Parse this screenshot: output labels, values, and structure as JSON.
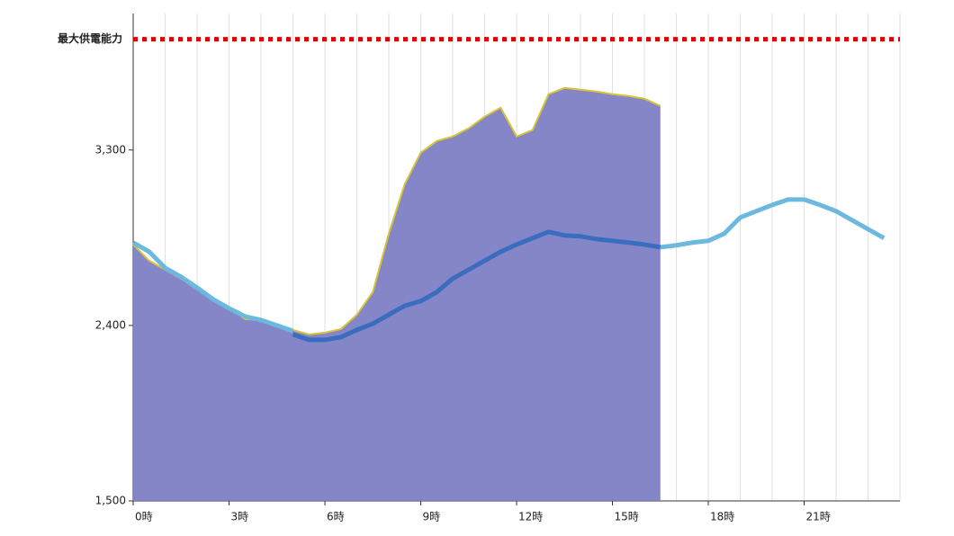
{
  "chart_data": {
    "type": "area-line",
    "x": [
      0,
      0.5,
      1,
      1.5,
      2,
      2.5,
      3,
      3.5,
      4,
      4.5,
      5,
      5.5,
      6,
      6.5,
      7,
      7.5,
      8,
      8.5,
      9,
      9.5,
      10,
      10.5,
      11,
      11.5,
      12,
      12.5,
      13,
      13.5,
      14,
      14.5,
      15,
      15.5,
      16,
      16.5,
      17,
      17.5,
      18,
      18.5,
      19,
      19.5,
      20,
      20.5,
      21,
      21.5,
      22,
      22.5,
      23,
      23.5
    ],
    "series": [
      {
        "kind": "area",
        "color": "#7d80c4",
        "line_color": "#d8c23a",
        "values": [
          2815,
          2732,
          2686,
          2640,
          2585,
          2538,
          2492,
          2432,
          2428,
          2400,
          2377,
          2354,
          2363,
          2381,
          2455,
          2571,
          2871,
          3125,
          3286,
          3346,
          3369,
          3411,
          3471,
          3517,
          3369,
          3402,
          3586,
          3618,
          3609,
          3600,
          3586,
          3577,
          3563,
          3526,
          null,
          null,
          null,
          null,
          null,
          null,
          null,
          null,
          null,
          null,
          null,
          null,
          null,
          null
        ]
      },
      {
        "kind": "line",
        "color": "#6cb8de",
        "values": [
          2825,
          2778,
          2695,
          2649,
          2594,
          2534,
          2488,
          2446,
          2428,
          2400,
          2372,
          null,
          null,
          null,
          null,
          null,
          null,
          null,
          null,
          null,
          null,
          null,
          null,
          null,
          null,
          null,
          null,
          null,
          null,
          null,
          null,
          null,
          null,
          2801,
          2811,
          2825,
          2834,
          2871,
          2954,
          2986,
          3018,
          3046,
          3046,
          3018,
          2986,
          2940,
          2894,
          2848
        ]
      },
      {
        "kind": "line",
        "color": "#3a6cc0",
        "values": [
          null,
          null,
          null,
          null,
          null,
          null,
          null,
          null,
          null,
          null,
          2354,
          2326,
          2326,
          2340,
          2377,
          2409,
          2455,
          2501,
          2525,
          2571,
          2640,
          2686,
          2732,
          2778,
          2815,
          2848,
          2880,
          2862,
          2857,
          2843,
          2834,
          2825,
          2815,
          2801,
          null,
          null,
          null,
          null,
          null,
          null,
          null,
          null,
          null,
          null,
          null,
          null,
          null,
          null
        ]
      }
    ],
    "reference": {
      "label": "最大供電能力",
      "value": 3868,
      "color": "#e00000"
    },
    "xlim": [
      0,
      24
    ],
    "xticks": [
      {
        "value": 0,
        "label": "0時"
      },
      {
        "value": 3,
        "label": "3時"
      },
      {
        "value": 6,
        "label": "6時"
      },
      {
        "value": 9,
        "label": "9時"
      },
      {
        "value": 12,
        "label": "12時"
      },
      {
        "value": 15,
        "label": "15時"
      },
      {
        "value": 18,
        "label": "18時"
      },
      {
        "value": 21,
        "label": "21時"
      }
    ],
    "xgrid": [
      1,
      2,
      3,
      4,
      5,
      6,
      7,
      8,
      9,
      10,
      11,
      12,
      13,
      14,
      15,
      16,
      17,
      18,
      19,
      20,
      21,
      22,
      23,
      24
    ],
    "ylim": [
      1500,
      4000
    ],
    "yticks": [
      {
        "value": 1500,
        "label": "1,500"
      },
      {
        "value": 2400,
        "label": "2,400"
      },
      {
        "value": 3300,
        "label": "3,300"
      }
    ]
  }
}
